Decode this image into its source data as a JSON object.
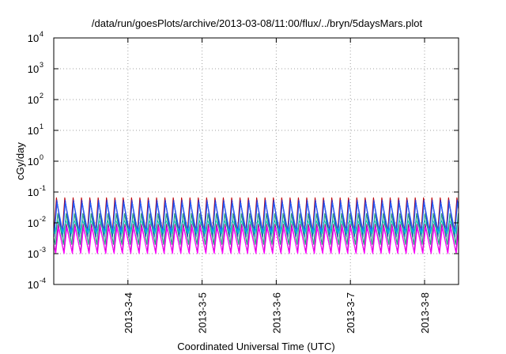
{
  "chart_data": {
    "type": "line",
    "title": "/data/run/goesPlots/archive/2013-03-08/11:00/flux/../bryn/5daysMars.plot",
    "xlabel": "Coordinated Universal Time (UTC)",
    "ylabel": "cGy/day",
    "yscale": "log",
    "ylim": [
      0.0001,
      10000
    ],
    "xlim": [
      "2013-03-03 00:00",
      "2013-03-08 11:00"
    ],
    "grid": true,
    "y_ticks": [
      {
        "base": "10",
        "exp": "-4",
        "value": 0.0001
      },
      {
        "base": "10",
        "exp": "-3",
        "value": 0.001
      },
      {
        "base": "10",
        "exp": "-2",
        "value": 0.01
      },
      {
        "base": "10",
        "exp": "-1",
        "value": 0.1
      },
      {
        "base": "10",
        "exp": "0",
        "value": 1
      },
      {
        "base": "10",
        "exp": "1",
        "value": 10
      },
      {
        "base": "10",
        "exp": "2",
        "value": 100
      },
      {
        "base": "10",
        "exp": "3",
        "value": 1000
      },
      {
        "base": "10",
        "exp": "4",
        "value": 10000
      }
    ],
    "x_ticks": [
      {
        "label": "2013-3-4",
        "value": "2013-03-04 00:00"
      },
      {
        "label": "2013-3-5",
        "value": "2013-03-05 00:00"
      },
      {
        "label": "2013-3-6",
        "value": "2013-03-06 00:00"
      },
      {
        "label": "2013-3-7",
        "value": "2013-03-07 00:00"
      },
      {
        "label": "2013-3-8",
        "value": "2013-03-08 00:00"
      }
    ],
    "oscillation": {
      "period_hours": 2.7,
      "waveform": "sawtooth"
    },
    "series": [
      {
        "color": "#c00000",
        "max": 0.065,
        "min": 0.004
      },
      {
        "color": "#3030d0",
        "max": 0.055,
        "min": 0.0035
      },
      {
        "color": "#2060ff",
        "max": 0.045,
        "min": 0.005
      },
      {
        "color": "#00c8e0",
        "max": 0.012,
        "min": 0.0045
      },
      {
        "color": "#20a080",
        "max": 0.02,
        "min": 0.002
      },
      {
        "color": "#a000a0",
        "max": 0.009,
        "min": 0.0011
      },
      {
        "color": "#ff00ff",
        "max": 0.007,
        "min": 0.001
      }
    ]
  }
}
